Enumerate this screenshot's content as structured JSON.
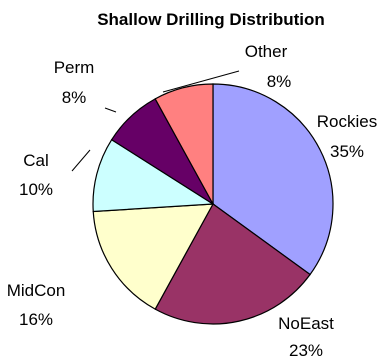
{
  "chart_data": {
    "type": "pie",
    "title": "Shallow Drilling Distribution",
    "slices": [
      {
        "name": "Rockies",
        "percent_label": "35%",
        "value": 35,
        "color": "#a0a0ff"
      },
      {
        "name": "NoEast",
        "percent_label": "23%",
        "value": 23,
        "color": "#993366"
      },
      {
        "name": "MidCon",
        "percent_label": "16%",
        "value": 16,
        "color": "#ffffcc"
      },
      {
        "name": "Cal",
        "percent_label": "10%",
        "value": 10,
        "color": "#ccffff"
      },
      {
        "name": "Perm",
        "percent_label": "8%",
        "value": 8,
        "color": "#660066"
      },
      {
        "name": "Other",
        "percent_label": "8%",
        "value": 8,
        "color": "#ff8080"
      }
    ],
    "start_angle": "12 o'clock",
    "direction": "clockwise",
    "legend": "none"
  }
}
